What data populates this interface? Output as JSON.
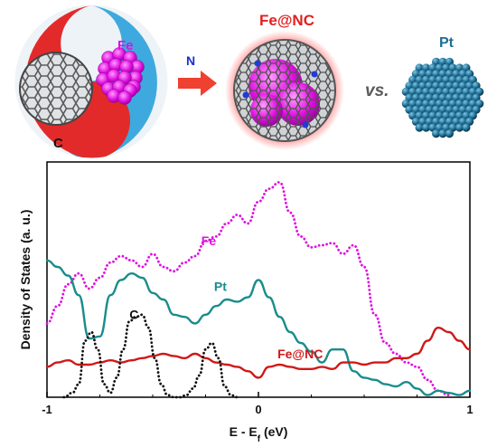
{
  "schematic": {
    "yinyang_c_label": "C",
    "yinyang_fe_label": "Fe",
    "arrow_label": "N",
    "product_label": "Fe@NC",
    "vs_label": "vs.",
    "pt_label": "Pt",
    "colors": {
      "red": "#e02020",
      "blue": "#2aa0dc",
      "magenta": "#e010e0",
      "pt_blue": "#1f6f94",
      "carbon_grey": "#6e6e6e"
    }
  },
  "chart_data": {
    "type": "line",
    "title": "",
    "xlabel_main": "E - E",
    "xlabel_sub": "f",
    "xlabel_unit": " (eV)",
    "ylabel": "Density of States (a. u.)",
    "xlim": [
      -1,
      1
    ],
    "ylim": [
      0,
      1
    ],
    "xticks": [
      -1,
      0,
      1
    ],
    "xtick_labels": [
      "-1",
      "0",
      "1"
    ],
    "grid": false,
    "y_tick_labels_shown": false,
    "series": [
      {
        "name": "Fe",
        "color": "#e010e0",
        "style": "dotted",
        "x": [
          -1.0,
          -0.95,
          -0.9,
          -0.85,
          -0.8,
          -0.75,
          -0.7,
          -0.65,
          -0.6,
          -0.55,
          -0.5,
          -0.45,
          -0.4,
          -0.35,
          -0.3,
          -0.25,
          -0.2,
          -0.15,
          -0.1,
          -0.05,
          0.0,
          0.05,
          0.1,
          0.15,
          0.2,
          0.25,
          0.3,
          0.35,
          0.4,
          0.45,
          0.5,
          0.55,
          0.6,
          0.65,
          0.7,
          0.75,
          0.8,
          0.85,
          0.9
        ],
        "y": [
          0.34,
          0.42,
          0.52,
          0.57,
          0.5,
          0.55,
          0.62,
          0.65,
          0.63,
          0.6,
          0.66,
          0.6,
          0.58,
          0.62,
          0.65,
          0.72,
          0.74,
          0.8,
          0.84,
          0.8,
          0.9,
          0.96,
          0.99,
          0.85,
          0.74,
          0.69,
          0.7,
          0.71,
          0.66,
          0.7,
          0.6,
          0.38,
          0.25,
          0.2,
          0.16,
          0.14,
          0.08,
          0.03,
          0.01
        ]
      },
      {
        "name": "Pt",
        "color": "#1a8c8c",
        "style": "solid",
        "x": [
          -1.0,
          -0.95,
          -0.9,
          -0.85,
          -0.8,
          -0.75,
          -0.7,
          -0.65,
          -0.6,
          -0.55,
          -0.5,
          -0.45,
          -0.4,
          -0.35,
          -0.3,
          -0.25,
          -0.2,
          -0.15,
          -0.1,
          -0.05,
          0.0,
          0.05,
          0.1,
          0.15,
          0.2,
          0.25,
          0.3,
          0.35,
          0.4,
          0.45,
          0.5,
          0.55,
          0.6,
          0.65,
          0.7,
          0.75,
          0.8,
          0.85,
          0.9,
          0.95,
          1.0
        ],
        "y": [
          0.63,
          0.6,
          0.56,
          0.47,
          0.27,
          0.28,
          0.47,
          0.54,
          0.57,
          0.55,
          0.48,
          0.45,
          0.38,
          0.37,
          0.34,
          0.38,
          0.42,
          0.45,
          0.44,
          0.46,
          0.54,
          0.46,
          0.37,
          0.3,
          0.25,
          0.21,
          0.16,
          0.22,
          0.22,
          0.12,
          0.09,
          0.08,
          0.06,
          0.05,
          0.07,
          0.04,
          0.01,
          0.03,
          0.02,
          0.01,
          0.03
        ]
      },
      {
        "name": "Fe@NC",
        "color": "#d01818",
        "style": "solid",
        "x": [
          -1.0,
          -0.95,
          -0.9,
          -0.85,
          -0.8,
          -0.75,
          -0.7,
          -0.65,
          -0.6,
          -0.55,
          -0.5,
          -0.45,
          -0.4,
          -0.35,
          -0.3,
          -0.25,
          -0.2,
          -0.15,
          -0.1,
          -0.05,
          0.0,
          0.05,
          0.1,
          0.15,
          0.2,
          0.25,
          0.3,
          0.35,
          0.4,
          0.45,
          0.5,
          0.55,
          0.6,
          0.65,
          0.7,
          0.75,
          0.8,
          0.85,
          0.9,
          0.95,
          1.0
        ],
        "y": [
          0.14,
          0.16,
          0.17,
          0.15,
          0.15,
          0.16,
          0.17,
          0.16,
          0.17,
          0.18,
          0.19,
          0.2,
          0.19,
          0.18,
          0.2,
          0.18,
          0.16,
          0.15,
          0.14,
          0.12,
          0.09,
          0.14,
          0.15,
          0.14,
          0.13,
          0.13,
          0.14,
          0.13,
          0.16,
          0.16,
          0.15,
          0.16,
          0.16,
          0.18,
          0.18,
          0.2,
          0.26,
          0.32,
          0.3,
          0.26,
          0.22
        ]
      },
      {
        "name": "C",
        "color": "#111111",
        "style": "dotted",
        "x": [
          -0.92,
          -0.88,
          -0.85,
          -0.82,
          -0.79,
          -0.76,
          -0.73,
          -0.7,
          -0.67,
          -0.64,
          -0.61,
          -0.58,
          -0.55,
          -0.52,
          -0.49,
          -0.46,
          -0.43,
          -0.4,
          -0.37,
          -0.34,
          -0.31,
          -0.28,
          -0.25,
          -0.22,
          -0.19,
          -0.16,
          -0.13,
          -0.1
        ],
        "y": [
          0.0,
          0.02,
          0.06,
          0.26,
          0.3,
          0.22,
          0.06,
          0.02,
          0.09,
          0.22,
          0.35,
          0.37,
          0.38,
          0.32,
          0.18,
          0.06,
          0.01,
          0.0,
          0.0,
          0.01,
          0.04,
          0.1,
          0.22,
          0.25,
          0.18,
          0.05,
          0.01,
          0.0
        ]
      }
    ],
    "annotations": [
      {
        "text": "Fe",
        "x": -0.27,
        "y": 0.7,
        "color": "#e010e0"
      },
      {
        "text": "Pt",
        "x": -0.21,
        "y": 0.49,
        "color": "#1a8c8c"
      },
      {
        "text": "C",
        "x": -0.61,
        "y": 0.36,
        "color": "#111111"
      },
      {
        "text": "Fe@NC",
        "x": 0.09,
        "y": 0.18,
        "color": "#d01818"
      }
    ]
  }
}
